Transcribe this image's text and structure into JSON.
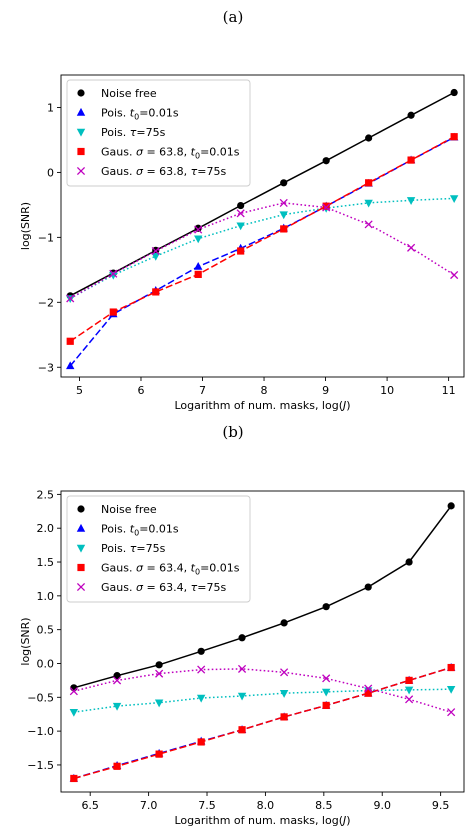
{
  "panels": [
    {
      "label": "(a)"
    },
    {
      "label": "(b)"
    }
  ],
  "chart_data": [
    {
      "type": "line",
      "xlabel": "Logarithm of num. masks, log(J)",
      "ylabel": "log(SNR)",
      "xlim": [
        4.7,
        11.25
      ],
      "ylim": [
        -3.15,
        1.5
      ],
      "xticks": [
        5,
        6,
        7,
        8,
        9,
        10,
        11
      ],
      "yticks": [
        -3,
        -2,
        -1,
        0,
        1
      ],
      "legend": "top-left",
      "series": [
        {
          "name": "Noise free",
          "marker": "circle",
          "color": "#000000",
          "line": "solid",
          "points": [
            [
              4.85,
              -1.9
            ],
            [
              5.55,
              -1.55
            ],
            [
              6.24,
              -1.2
            ],
            [
              6.93,
              -0.86
            ],
            [
              7.62,
              -0.51
            ],
            [
              8.32,
              -0.16
            ],
            [
              9.01,
              0.18
            ],
            [
              9.7,
              0.53
            ],
            [
              10.39,
              0.88
            ],
            [
              11.09,
              1.23
            ]
          ]
        },
        {
          "name": "Pois. t0=0.01s",
          "marker": "triangle-up",
          "color": "#0000ff",
          "line": "dashed",
          "points": [
            [
              4.85,
              -2.98
            ],
            [
              5.55,
              -2.18
            ],
            [
              6.24,
              -1.82
            ],
            [
              6.93,
              -1.45
            ],
            [
              7.62,
              -1.17
            ],
            [
              8.32,
              -0.86
            ],
            [
              9.01,
              -0.52
            ],
            [
              9.7,
              -0.17
            ],
            [
              10.39,
              0.19
            ],
            [
              11.09,
              0.54
            ]
          ]
        },
        {
          "name": "Pois. τ=75s",
          "marker": "triangle-down",
          "color": "#00bfbf",
          "line": "dotted",
          "points": [
            [
              4.85,
              -1.94
            ],
            [
              5.55,
              -1.58
            ],
            [
              6.24,
              -1.29
            ],
            [
              6.93,
              -1.02
            ],
            [
              7.62,
              -0.82
            ],
            [
              8.32,
              -0.65
            ],
            [
              9.01,
              -0.55
            ],
            [
              9.7,
              -0.47
            ],
            [
              10.39,
              -0.43
            ],
            [
              11.09,
              -0.4
            ]
          ]
        },
        {
          "name": "Gaus. σ=63.8, t0=0.01s",
          "marker": "square",
          "color": "#ff0000",
          "line": "dashed",
          "points": [
            [
              4.85,
              -2.6
            ],
            [
              5.55,
              -2.15
            ],
            [
              6.24,
              -1.84
            ],
            [
              6.93,
              -1.57
            ],
            [
              7.62,
              -1.21
            ],
            [
              8.32,
              -0.87
            ],
            [
              9.01,
              -0.52
            ],
            [
              9.7,
              -0.16
            ],
            [
              10.39,
              0.19
            ],
            [
              11.09,
              0.55
            ]
          ]
        },
        {
          "name": "Gaus. σ=63.8, τ=75s",
          "marker": "x",
          "color": "#bf00bf",
          "line": "dotted",
          "points": [
            [
              4.85,
              -1.94
            ],
            [
              5.55,
              -1.56
            ],
            [
              6.24,
              -1.21
            ],
            [
              6.93,
              -0.88
            ],
            [
              7.62,
              -0.63
            ],
            [
              8.32,
              -0.47
            ],
            [
              9.01,
              -0.54
            ],
            [
              9.7,
              -0.8
            ],
            [
              10.39,
              -1.16
            ],
            [
              11.09,
              -1.58
            ]
          ]
        }
      ],
      "legend_entries": [
        {
          "prefix": "Noise free",
          "var": "",
          "mid": "",
          "var2": "",
          "suffix": ""
        },
        {
          "prefix": "Pois. ",
          "var": "t",
          "sub": "0",
          "mid": "=0.01s",
          "var2": "",
          "suffix": ""
        },
        {
          "prefix": "Pois. ",
          "var": "τ",
          "sub": "",
          "mid": "=75s",
          "var2": "",
          "suffix": ""
        },
        {
          "prefix": "Gaus. ",
          "var": "σ",
          "sub": "",
          "mid": " = 63.8, ",
          "var2": "t",
          "sub2": "0",
          "suffix": "=0.01s"
        },
        {
          "prefix": "Gaus. ",
          "var": "σ",
          "sub": "",
          "mid": " = 63.8, ",
          "var2": "τ",
          "sub2": "",
          "suffix": "=75s"
        }
      ]
    },
    {
      "type": "line",
      "xlabel": "Logarithm of num. masks, log(J)",
      "ylabel": "log(SNR)",
      "xlim": [
        6.25,
        9.7
      ],
      "ylim": [
        -1.9,
        2.55
      ],
      "xticks": [
        6.5,
        7.0,
        7.5,
        8.0,
        8.5,
        9.0,
        9.5
      ],
      "xtick_labels": [
        "6.5",
        "7.0",
        "7.5",
        "8.0",
        "8.5",
        "9.0",
        "9.5"
      ],
      "yticks": [
        -1.5,
        -1.0,
        -0.5,
        0.0,
        0.5,
        1.0,
        1.5,
        2.0,
        2.5
      ],
      "ytick_labels": [
        "−1.5",
        "−1.0",
        "−0.5",
        "0.0",
        "0.5",
        "1.0",
        "1.5",
        "2.0",
        "2.5"
      ],
      "legend": "top-left",
      "series": [
        {
          "name": "Noise free",
          "marker": "circle",
          "color": "#000000",
          "line": "solid",
          "points": [
            [
              6.36,
              -0.36
            ],
            [
              6.73,
              -0.18
            ],
            [
              7.09,
              -0.02
            ],
            [
              7.45,
              0.18
            ],
            [
              7.8,
              0.38
            ],
            [
              8.16,
              0.6
            ],
            [
              8.52,
              0.84
            ],
            [
              8.88,
              1.13
            ],
            [
              9.23,
              1.5
            ],
            [
              9.59,
              2.33
            ]
          ]
        },
        {
          "name": "Pois. t0=0.01s",
          "marker": "triangle-up",
          "color": "#0000ff",
          "line": "dashed",
          "points": [
            [
              6.36,
              -1.7
            ],
            [
              6.73,
              -1.51
            ],
            [
              7.09,
              -1.33
            ],
            [
              7.45,
              -1.15
            ],
            [
              7.8,
              -0.98
            ],
            [
              8.16,
              -0.79
            ],
            [
              8.52,
              -0.62
            ],
            [
              8.88,
              -0.44
            ],
            [
              9.23,
              -0.25
            ],
            [
              9.59,
              -0.06
            ]
          ]
        },
        {
          "name": "Pois. τ=75s",
          "marker": "triangle-down",
          "color": "#00bfbf",
          "line": "dotted",
          "points": [
            [
              6.36,
              -0.72
            ],
            [
              6.73,
              -0.63
            ],
            [
              7.09,
              -0.58
            ],
            [
              7.45,
              -0.51
            ],
            [
              7.8,
              -0.48
            ],
            [
              8.16,
              -0.44
            ],
            [
              8.52,
              -0.42
            ],
            [
              8.88,
              -0.4
            ],
            [
              9.23,
              -0.39
            ],
            [
              9.59,
              -0.38
            ]
          ]
        },
        {
          "name": "Gaus. σ=63.4, t0=0.01s",
          "marker": "square",
          "color": "#ff0000",
          "line": "dashed",
          "points": [
            [
              6.36,
              -1.7
            ],
            [
              6.73,
              -1.52
            ],
            [
              7.09,
              -1.34
            ],
            [
              7.45,
              -1.16
            ],
            [
              7.8,
              -0.98
            ],
            [
              8.16,
              -0.79
            ],
            [
              8.52,
              -0.62
            ],
            [
              8.88,
              -0.44
            ],
            [
              9.23,
              -0.25
            ],
            [
              9.59,
              -0.06
            ]
          ]
        },
        {
          "name": "Gaus. σ=63.4, τ=75s",
          "marker": "x",
          "color": "#bf00bf",
          "line": "dotted",
          "points": [
            [
              6.36,
              -0.41
            ],
            [
              6.73,
              -0.25
            ],
            [
              7.09,
              -0.15
            ],
            [
              7.45,
              -0.09
            ],
            [
              7.8,
              -0.08
            ],
            [
              8.16,
              -0.13
            ],
            [
              8.52,
              -0.22
            ],
            [
              8.88,
              -0.37
            ],
            [
              9.23,
              -0.53
            ],
            [
              9.59,
              -0.72
            ]
          ]
        }
      ],
      "legend_entries": [
        {
          "prefix": "Noise free",
          "var": "",
          "mid": "",
          "var2": "",
          "suffix": ""
        },
        {
          "prefix": "Pois. ",
          "var": "t",
          "sub": "0",
          "mid": "=0.01s",
          "var2": "",
          "suffix": ""
        },
        {
          "prefix": "Pois. ",
          "var": "τ",
          "sub": "",
          "mid": "=75s",
          "var2": "",
          "suffix": ""
        },
        {
          "prefix": "Gaus. ",
          "var": "σ",
          "sub": "",
          "mid": " = 63.4, ",
          "var2": "t",
          "sub2": "0",
          "suffix": "=0.01s"
        },
        {
          "prefix": "Gaus. ",
          "var": "σ",
          "sub": "",
          "mid": " = 63.4, ",
          "var2": "τ",
          "sub2": "",
          "suffix": "=75s"
        }
      ]
    }
  ]
}
